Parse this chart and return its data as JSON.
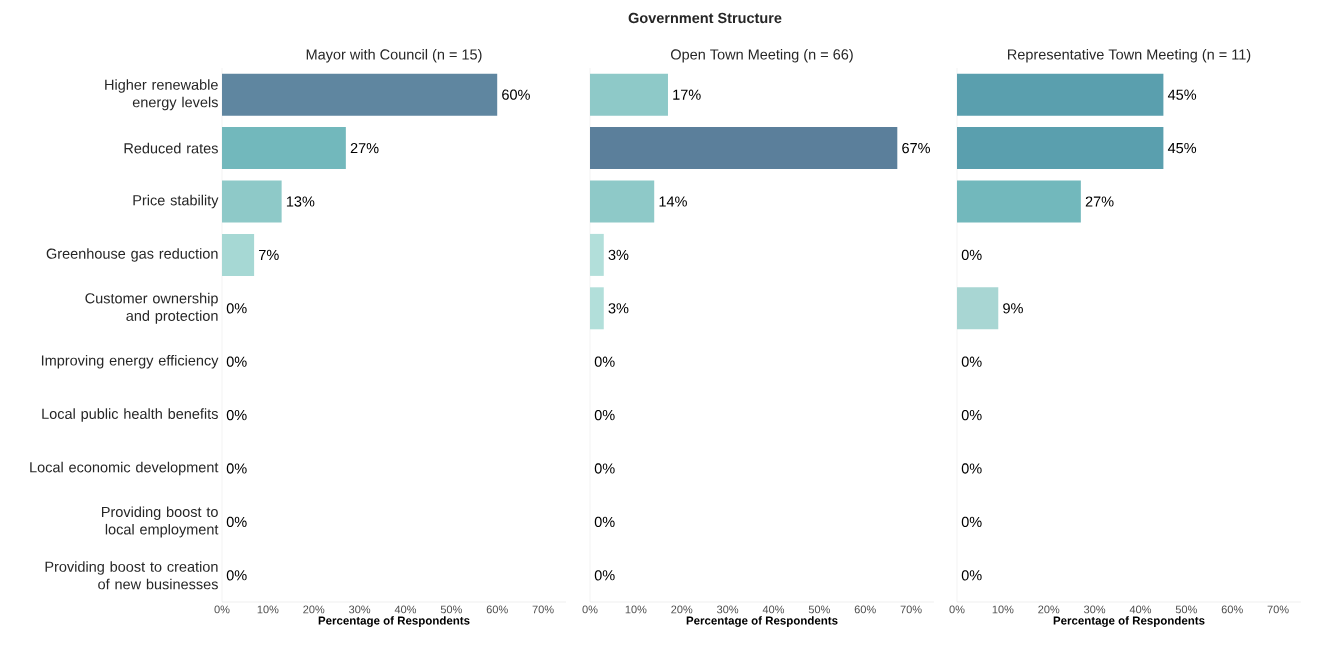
{
  "chart_data": [
    {
      "type": "bar",
      "orientation": "horizontal",
      "subtitle": "Mayor with Council (n = 15)",
      "xlabel": "Percentage of Respondents",
      "categories": [
        "Higher renewable energy levels",
        "Reduced rates",
        "Price stability",
        "Greenhouse gas reduction",
        "Customer ownership and protection",
        "Improving energy efficiency",
        "Local public health benefits",
        "Local economic development",
        "Providing boost to local employment",
        "Providing boost to creation of new businesses"
      ],
      "values": [
        60,
        27,
        13,
        7,
        0,
        0,
        0,
        0,
        0,
        0
      ],
      "value_labels": [
        "60%",
        "27%",
        "13%",
        "7%",
        "0%",
        "0%",
        "0%",
        "0%",
        "0%",
        "0%"
      ],
      "colors": [
        "#5f86a0",
        "#72b8bc",
        "#8ec9c8",
        "#a6d8d4",
        "#b2dfda",
        "#b2dfda",
        "#b2dfda",
        "#b2dfda",
        "#b2dfda",
        "#b2dfda"
      ],
      "xlim": [
        0,
        75
      ],
      "xticks": [
        {
          "value": 0,
          "label": "0%"
        },
        {
          "value": 10,
          "label": "10%"
        },
        {
          "value": 20,
          "label": "20%"
        },
        {
          "value": 30,
          "label": "30%"
        },
        {
          "value": 40,
          "label": "40%"
        },
        {
          "value": 50,
          "label": "50%"
        },
        {
          "value": 60,
          "label": "60%"
        },
        {
          "value": 70,
          "label": "70%"
        }
      ]
    },
    {
      "type": "bar",
      "orientation": "horizontal",
      "title": "Government Structure",
      "subtitle": "Open Town Meeting (n = 66)",
      "xlabel": "Percentage of Respondents",
      "tick_labels": "x",
      "categories": [
        null,
        null,
        null,
        null,
        null,
        null,
        null,
        null,
        null,
        null
      ],
      "values": [
        17,
        67,
        14,
        3,
        3,
        0,
        0,
        0,
        0,
        0
      ],
      "value_labels": [
        "17%",
        "67%",
        "14%",
        "3%",
        "3%",
        "0%",
        "0%",
        "0%",
        "0%",
        "0%"
      ],
      "colors": [
        "#8ec9c8",
        "#5b7f9b",
        "#8ec9c8",
        "#b2dfda",
        "#b2dfda",
        "#b2dfda",
        "#b2dfda",
        "#b2dfda",
        "#b2dfda",
        "#b2dfda"
      ],
      "xlim": [
        0,
        75
      ],
      "xticks": [
        {
          "value": 0,
          "label": "0%"
        },
        {
          "value": 10,
          "label": "10%"
        },
        {
          "value": 20,
          "label": "20%"
        },
        {
          "value": 30,
          "label": "30%"
        },
        {
          "value": 40,
          "label": "40%"
        },
        {
          "value": 50,
          "label": "50%"
        },
        {
          "value": 60,
          "label": "60%"
        },
        {
          "value": 70,
          "label": "70%"
        }
      ]
    },
    {
      "type": "bar",
      "orientation": "horizontal",
      "subtitle": "Representative Town Meeting (n = 11)",
      "xlabel": "Percentage of Respondents",
      "tick_labels": "x",
      "categories": [
        null,
        null,
        null,
        null,
        null,
        null,
        null,
        null,
        null,
        null
      ],
      "values": [
        45,
        45,
        27,
        0,
        9,
        0,
        0,
        0,
        0,
        0
      ],
      "value_labels": [
        "45%",
        "45%",
        "27%",
        "0%",
        "9%",
        "0%",
        "0%",
        "0%",
        "0%",
        "0%"
      ],
      "colors": [
        "#5a9fae",
        "#5a9fae",
        "#72b8bc",
        "#b2dfda",
        "#a8d6d3",
        "#b2dfda",
        "#b2dfda",
        "#b2dfda",
        "#b2dfda",
        "#b2dfda"
      ],
      "xlim": [
        0,
        75
      ],
      "xticks": [
        {
          "value": 0,
          "label": "0%"
        },
        {
          "value": 10,
          "label": "10%"
        },
        {
          "value": 20,
          "label": "20%"
        },
        {
          "value": 30,
          "label": "30%"
        },
        {
          "value": 40,
          "label": "40%"
        },
        {
          "value": 50,
          "label": "50%"
        },
        {
          "value": 60,
          "label": "60%"
        },
        {
          "value": 70,
          "label": "70%"
        }
      ]
    }
  ]
}
